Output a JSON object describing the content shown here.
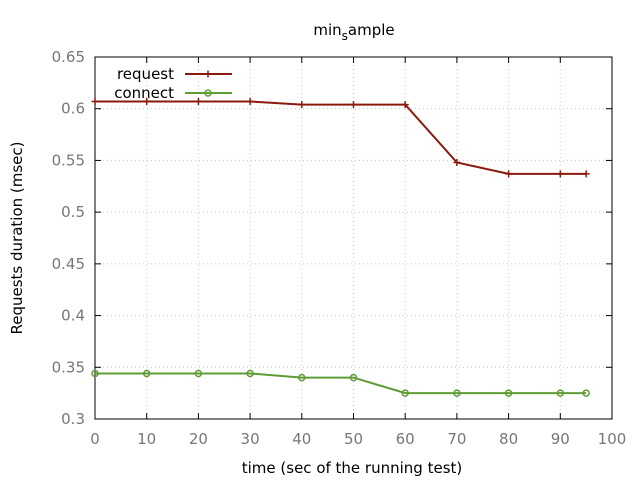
{
  "chart_data": {
    "type": "line",
    "title": "min",
    "title_subscript": "s",
    "title_suffix": "ample",
    "xlabel": "time (sec of the running test)",
    "ylabel": "Requests duration (msec)",
    "xlim": [
      0,
      100
    ],
    "ylim": [
      0.3,
      0.65
    ],
    "xticks": [
      0,
      10,
      20,
      30,
      40,
      50,
      60,
      70,
      80,
      90,
      100
    ],
    "yticks": [
      0.3,
      0.35,
      0.4,
      0.45,
      0.5,
      0.55,
      0.6,
      0.65
    ],
    "ytick_labels": [
      "0.3",
      "0.35",
      "0.4",
      "0.45",
      "0.5",
      "0.55",
      "0.6",
      "0.65"
    ],
    "grid": true,
    "legend_position": "top-left",
    "series": [
      {
        "name": "request",
        "color": "#8b1a0e",
        "marker": "plus",
        "x": [
          0,
          10,
          20,
          30,
          40,
          50,
          60,
          70,
          80,
          90,
          95
        ],
        "y": [
          0.607,
          0.607,
          0.607,
          0.607,
          0.604,
          0.604,
          0.604,
          0.548,
          0.537,
          0.537,
          0.537
        ]
      },
      {
        "name": "connect",
        "color": "#5e9c36",
        "marker": "circle",
        "x": [
          0,
          10,
          20,
          30,
          40,
          50,
          60,
          70,
          80,
          90,
          95
        ],
        "y": [
          0.344,
          0.344,
          0.344,
          0.344,
          0.34,
          0.34,
          0.325,
          0.325,
          0.325,
          0.325,
          0.325
        ]
      }
    ]
  }
}
